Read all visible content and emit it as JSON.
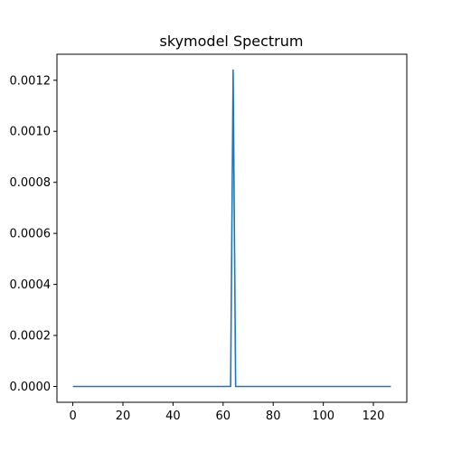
{
  "chart_data": {
    "type": "line",
    "title": "skymodel Spectrum",
    "xlabel": "",
    "ylabel": "",
    "xlim": [
      -6.35,
      133.35
    ],
    "ylim": [
      -6.2e-05,
      0.001302
    ],
    "xticks": [
      0,
      20,
      40,
      60,
      80,
      100,
      120
    ],
    "xtick_labels": [
      "0",
      "20",
      "40",
      "60",
      "80",
      "100",
      "120"
    ],
    "yticks": [
      0.0,
      0.0002,
      0.0004,
      0.0006,
      0.0008,
      0.001,
      0.0012
    ],
    "ytick_labels": [
      "0.0000",
      "0.0002",
      "0.0004",
      "0.0006",
      "0.0008",
      "0.0010",
      "0.0012"
    ],
    "grid": false,
    "series": [
      {
        "color": "#1f77b4",
        "x": [
          0,
          63,
          64,
          65,
          127
        ],
        "y": [
          0,
          0,
          0.00124,
          0,
          0
        ]
      }
    ]
  }
}
